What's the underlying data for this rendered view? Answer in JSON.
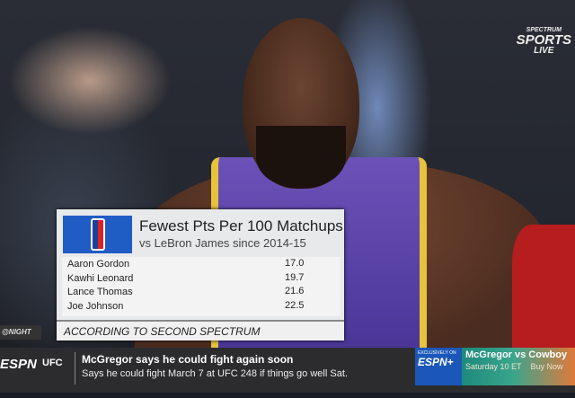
{
  "network_logo": {
    "line1": "SPECTRUM",
    "line2": "SPORTS",
    "line3": "LIVE"
  },
  "stat_card": {
    "title": "Fewest Pts Per 100 Matchups",
    "subtitle": "vs LeBron James since 2014-15",
    "rows": [
      {
        "player": "Aaron Gordon",
        "value": "17.0"
      },
      {
        "player": "Kawhi Leonard",
        "value": "19.7"
      },
      {
        "player": "Lance Thomas",
        "value": "21.6"
      },
      {
        "player": "Joe Johnson",
        "value": "22.5"
      }
    ],
    "source": "ACCORDING TO SECOND SPECTRUM"
  },
  "show_tag": "@NIGHT",
  "ticker": {
    "network": "ESPN",
    "category": "UFC",
    "headline": "McGregor says he could fight again soon",
    "detail": "Says he could fight March 7 at UFC 248 if things go well Sat.",
    "ad": {
      "badge": "EXCLUSIVELY ON",
      "brand": "ESPN+",
      "title": "McGregor vs Cowboy",
      "time": "Saturday 10 ET",
      "cta": "Buy Now"
    }
  }
}
